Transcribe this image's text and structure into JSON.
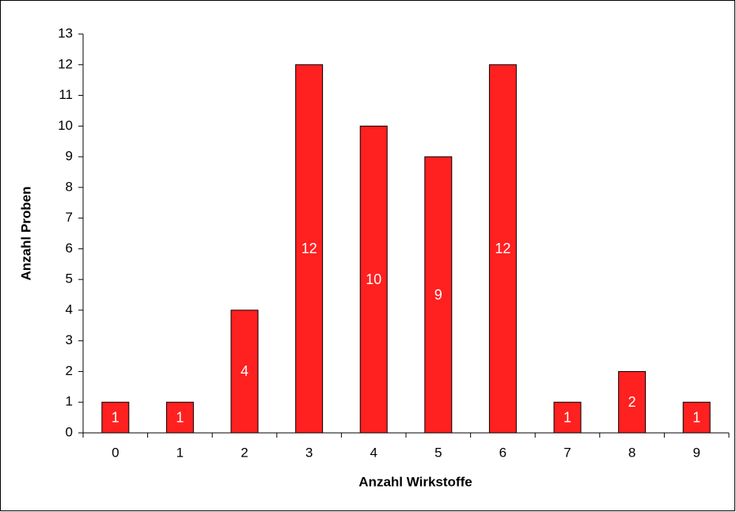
{
  "chart_data": {
    "type": "bar",
    "x_label": "Anzahl Wirkstoffe",
    "y_label": "Anzahl Proben",
    "categories": [
      "0",
      "1",
      "2",
      "3",
      "4",
      "5",
      "6",
      "7",
      "8",
      "9"
    ],
    "values": [
      1,
      1,
      4,
      12,
      10,
      9,
      12,
      1,
      2,
      1
    ],
    "color": "#ff2020",
    "ylim": [
      0,
      13
    ],
    "yticks": [
      0,
      1,
      2,
      3,
      4,
      5,
      6,
      7,
      8,
      9,
      10,
      11,
      12,
      13
    ],
    "grid": false
  }
}
